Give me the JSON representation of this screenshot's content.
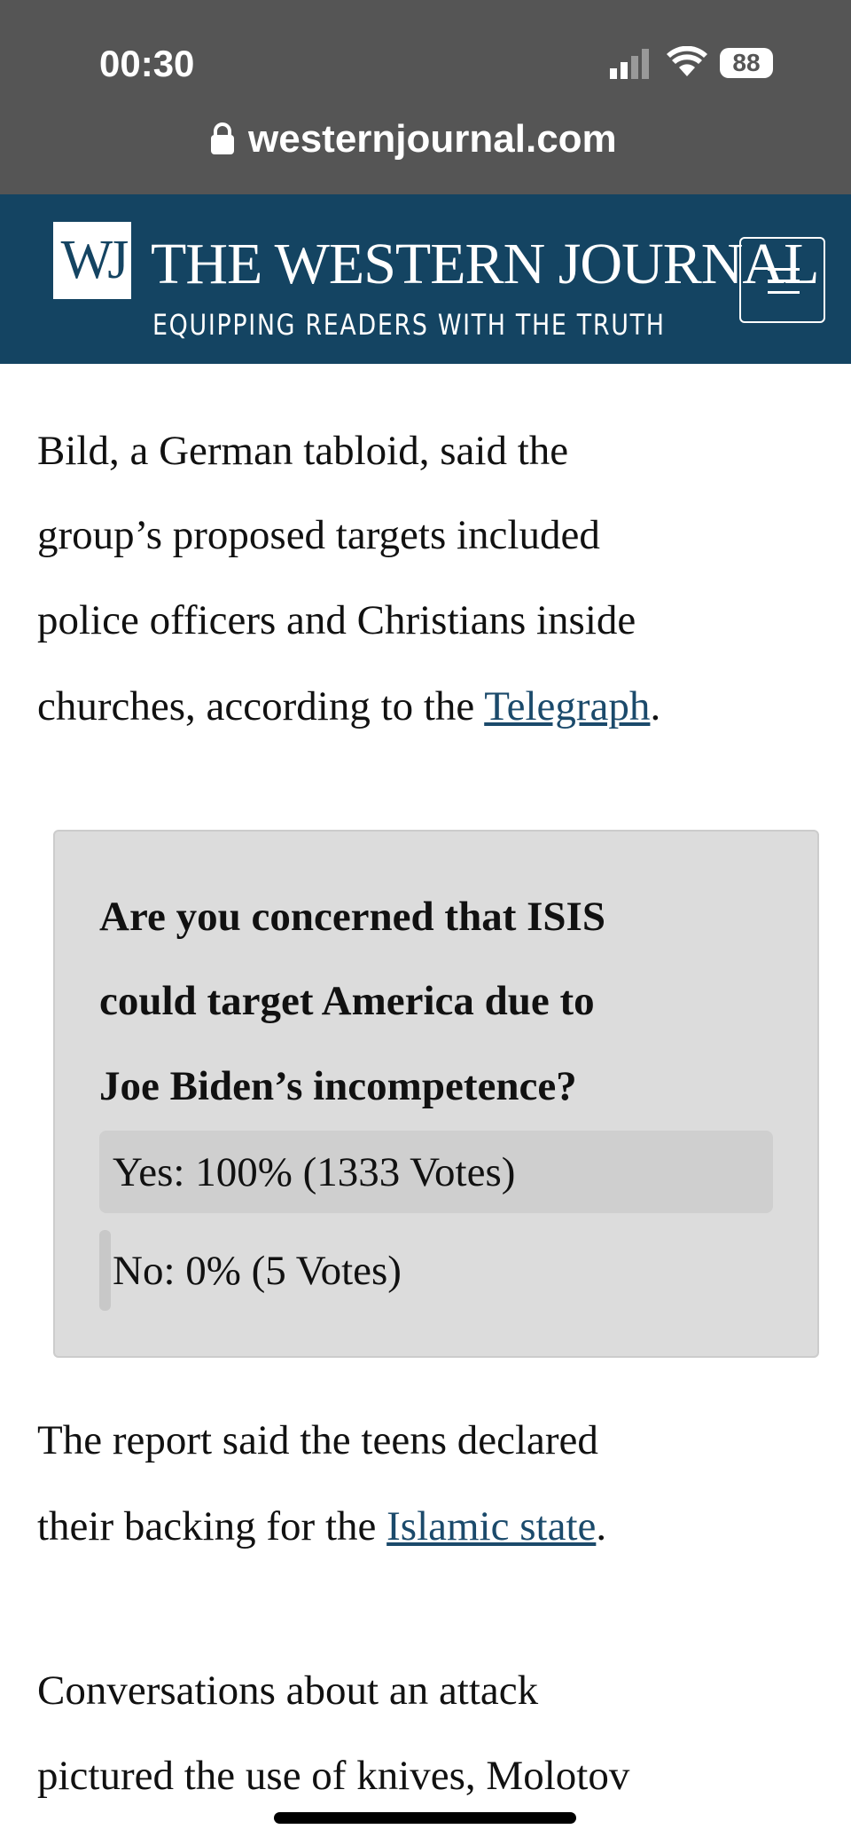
{
  "status_bar": {
    "time": "00:30",
    "battery": "88",
    "url": "westernjournal.com"
  },
  "header": {
    "logo": "WJ",
    "title": "THE WESTERN JOURNAL",
    "tagline": "EQUIPPING READERS WITH THE TRUTH"
  },
  "article": {
    "paragraphs": [
      {
        "lines": [
          "Bild, a German tabloid, said the",
          "group’s proposed targets included",
          "police officers and Christians inside",
          {
            "text": "churches, according to the ",
            "link": "Telegraph",
            "after": "."
          }
        ]
      },
      {
        "lines": [
          "The report said the teens declared",
          {
            "text": "their backing for the ",
            "link": "Islamic state",
            "after": "."
          }
        ]
      },
      {
        "lines": [
          "Conversations about an attack",
          "pictured the use of knives, Molotov"
        ]
      }
    ]
  },
  "poll": {
    "question": [
      "Are you concerned that ISIS",
      "could target America due to",
      "Joe Biden’s incompetence?"
    ],
    "options": [
      "Yes: 100% (1333 Votes)",
      "No: 0% (5 Votes)"
    ]
  }
}
